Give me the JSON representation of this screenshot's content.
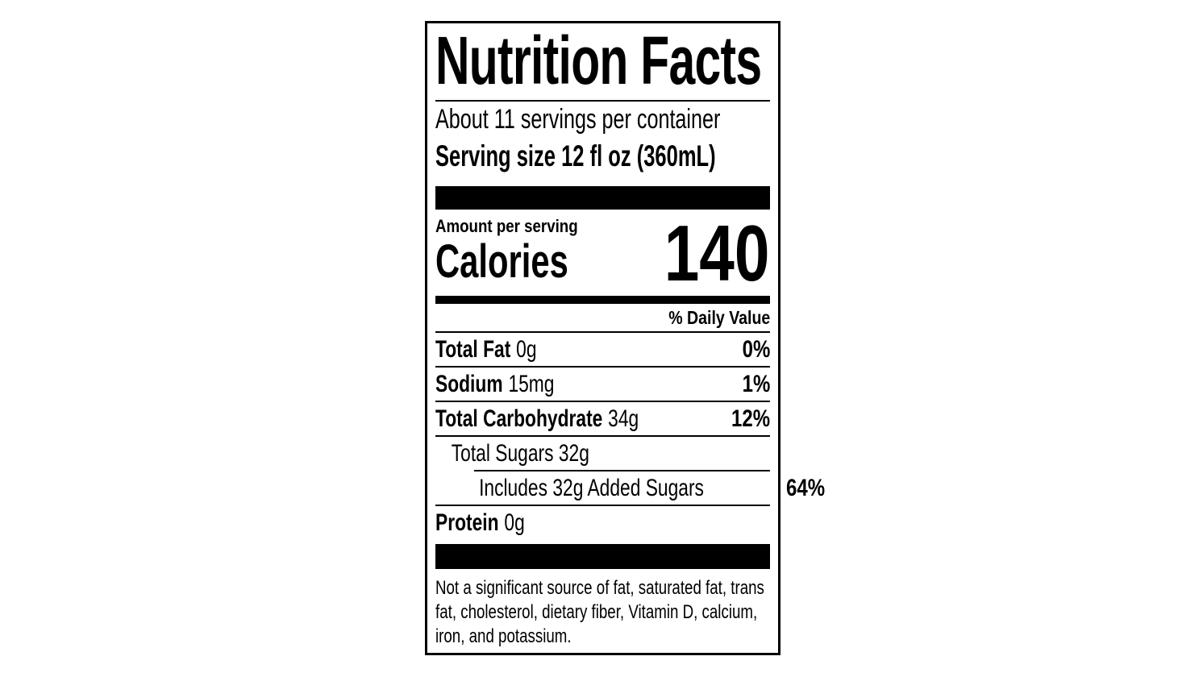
{
  "label": {
    "title": "Nutrition Facts",
    "servings_per_container": "About 11 servings per container",
    "serving_size": "Serving size 12 fl oz (360mL)",
    "amount_per_serving": "Amount per serving",
    "calories_label": "Calories",
    "calories_value": "140",
    "daily_value_header": "% Daily Value",
    "nutrients": [
      {
        "bold": "Total Fat",
        "rest": "0g",
        "dv": "0%"
      },
      {
        "bold": "Sodium",
        "rest": "15mg",
        "dv": "1%"
      },
      {
        "bold": "Total Carbohydrate",
        "rest": "34g",
        "dv": "12%"
      },
      {
        "bold": "",
        "rest": "Total Sugars 32g",
        "dv": ""
      },
      {
        "bold": "",
        "rest": "Includes 32g Added Sugars",
        "dv": "64%"
      },
      {
        "bold": "Protein",
        "rest": "0g",
        "dv": ""
      }
    ],
    "footnote": "Not a significant source of fat, saturated fat, trans fat, cholesterol, dietary fiber, Vitamin D, calcium, iron, and potassium.",
    "colors": {
      "ink": "#000000",
      "background": "#ffffff"
    }
  }
}
